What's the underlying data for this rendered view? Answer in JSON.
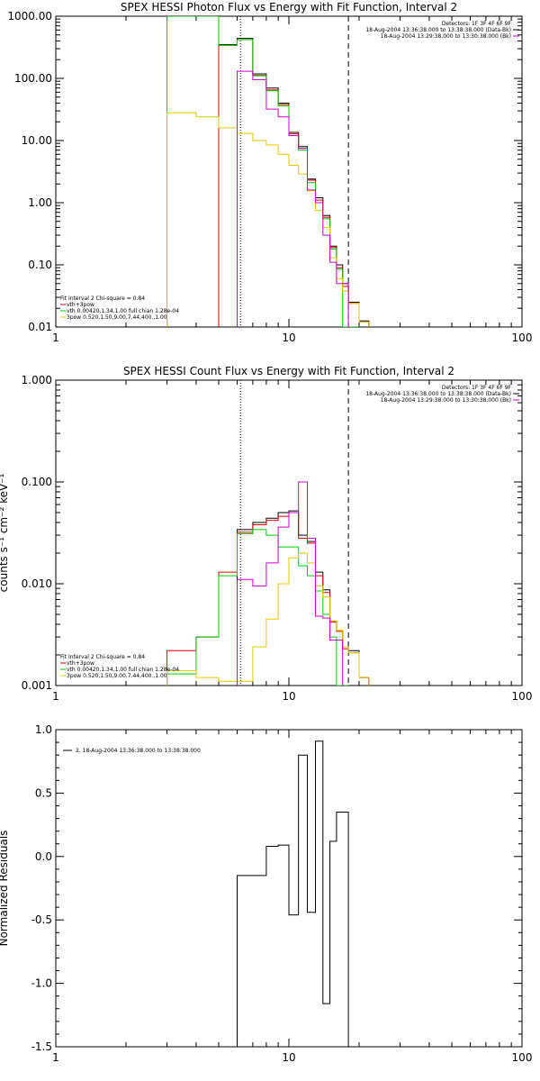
{
  "chart_data": [
    {
      "type": "line",
      "title": "SPEX HESSI Photon Flux vs Energy with Fit Function, Interval 2",
      "xlabel": "",
      "ylabel": "",
      "xscale": "log",
      "yscale": "log",
      "xlim": [
        1,
        100
      ],
      "ylim": [
        0.01,
        1000
      ],
      "xticks": [
        "1",
        "10",
        "100"
      ],
      "yticks": [
        "0.01",
        "0.10",
        "1.00",
        "10.00",
        "100.00",
        "1000.00"
      ],
      "vlines": [
        {
          "x": 6.2,
          "style": "dotted",
          "color": "#000000"
        },
        {
          "x": 18.0,
          "style": "dashed",
          "color": "#000000"
        }
      ],
      "header_lines": [
        "Detectors: 1F 3F 4F 6F 9F",
        "18-Aug-2004 13:36:38.000 to 13:38:38.000 (Data-Bk)",
        "18-Aug-2004 13:29:38.000 to 13:30:38.000 (Bk)"
      ],
      "legend_location": "bottom-left",
      "legend": [
        {
          "text": "Fit Interval 2   Chi-square = 0.84",
          "color": ""
        },
        {
          "text": "vth+3pow",
          "color": "#dd0000"
        },
        {
          "text": "vth 0.00420,1.34,1.00  full chian 1.28e-04",
          "color": "#00cc00"
        },
        {
          "text": "3pow 0.520,1.50,9.00,7.44,400.,1.00",
          "color": "#e6c800"
        }
      ],
      "edges": [
        3.0,
        4.0,
        5.0,
        6.0,
        7.0,
        8.0,
        9.0,
        10.0,
        11.0,
        12.0,
        13.0,
        14.0,
        15.0,
        16.0,
        17.0,
        18.0,
        20.0,
        22.0
      ],
      "series": [
        {
          "color": "#000000",
          "values": [
            null,
            null,
            350,
            440,
            118,
            70,
            40,
            13.5,
            8.0,
            2.4,
            1.2,
            0.62,
            0.2,
            0.1,
            0.05,
            0.025,
            0.0125
          ]
        },
        {
          "color": "#dd0000",
          "values": [
            null,
            null,
            340,
            420,
            112,
            65,
            38,
            12.8,
            7.5,
            2.3,
            1.1,
            0.58,
            0.19,
            0.09,
            0.045,
            0.024,
            0.012
          ]
        },
        {
          "color": "#00cc00",
          "values": [
            1000,
            1000,
            340,
            420,
            110,
            63,
            36,
            12.0,
            7.0,
            2.1,
            1.0,
            0.55,
            0.18,
            0.085,
            0.01,
            0.01,
            null
          ]
        },
        {
          "color": "#e6c800",
          "values": [
            28,
            24,
            16,
            13,
            10,
            8.5,
            6.0,
            4.0,
            2.9,
            1.55,
            0.75,
            0.4,
            0.13,
            0.06,
            0.038,
            0.024,
            0.012
          ]
        },
        {
          "color": "#cc00cc",
          "values": [
            null,
            null,
            null,
            130,
            95,
            32,
            24,
            12.0,
            7.5,
            1.6,
            1.0,
            0.3,
            0.11,
            0.05,
            0.05,
            null,
            null
          ]
        }
      ]
    },
    {
      "type": "line",
      "title": "SPEX HESSI Count Flux vs Energy with Fit Function, Interval 2",
      "xlabel": "",
      "ylabel": "counts s⁻¹ cm⁻² keV⁻¹",
      "xscale": "log",
      "yscale": "log",
      "xlim": [
        1,
        100
      ],
      "ylim": [
        0.001,
        1.0
      ],
      "xticks": [
        "1",
        "10",
        "100"
      ],
      "yticks": [
        "0.001",
        "0.010",
        "0.100",
        "1.000"
      ],
      "vlines": [
        {
          "x": 6.2,
          "style": "dotted",
          "color": "#000000"
        },
        {
          "x": 18.0,
          "style": "dashed",
          "color": "#000000"
        }
      ],
      "header_lines": [
        "Detectors: 1F 3F 4F 6F 9F",
        "18-Aug-2004 13:36:38.000 to 13:38:38.000 (Data-Bk)",
        "18-Aug-2004 13:29:38.000 to 13:30:38.000 (Bk)"
      ],
      "legend_location": "bottom-left",
      "legend": [
        {
          "text": "Fit Interval 2   Chi-square = 0.84",
          "color": ""
        },
        {
          "text": "vth+3pow",
          "color": "#dd0000"
        },
        {
          "text": "vth 0.00420,1.34,1.00  full chian 1.28e-04",
          "color": "#00cc00"
        },
        {
          "text": "3pow 0.520,1.50,9.00,7.44,400.,1.00",
          "color": "#e6c800"
        }
      ],
      "edges": [
        3.0,
        4.0,
        5.0,
        6.0,
        7.0,
        8.0,
        9.0,
        10.0,
        11.0,
        12.0,
        13.0,
        14.0,
        15.0,
        16.0,
        17.0,
        18.0,
        20.0,
        22.0
      ],
      "series": [
        {
          "color": "#000000",
          "values": [
            null,
            null,
            null,
            0.034,
            0.04,
            0.044,
            0.05,
            0.052,
            0.03,
            0.026,
            0.013,
            0.0087,
            0.0043,
            0.0035,
            0.0024,
            0.0022,
            0.0012
          ]
        },
        {
          "color": "#dd0000",
          "values": [
            0.0022,
            0.003,
            0.013,
            0.032,
            0.038,
            0.042,
            0.046,
            0.05,
            0.028,
            0.025,
            0.012,
            0.0082,
            0.0042,
            0.0034,
            0.0023,
            0.0021,
            0.0012
          ]
        },
        {
          "color": "#00cc00",
          "values": [
            0.0013,
            0.003,
            0.012,
            0.031,
            0.034,
            0.03,
            0.023,
            0.023,
            0.015,
            0.012,
            0.0085,
            0.005,
            0.003,
            0.001,
            0.001,
            null,
            null
          ]
        },
        {
          "color": "#e6c800",
          "values": [
            0.0014,
            0.0012,
            0.0011,
            0.0011,
            0.0024,
            0.0045,
            0.01,
            0.018,
            0.02,
            0.016,
            0.0095,
            0.0074,
            0.0043,
            0.0035,
            0.0024,
            0.0021,
            0.0012
          ]
        },
        {
          "color": "#cc00cc",
          "values": [
            null,
            null,
            null,
            0.011,
            0.0095,
            0.016,
            0.036,
            0.05,
            0.1,
            0.028,
            0.0048,
            0.0046,
            0.0028,
            0.0028,
            null,
            null,
            null
          ]
        }
      ]
    },
    {
      "type": "line",
      "title": "",
      "xlabel": "",
      "ylabel": "Normalized Residuals",
      "xscale": "log",
      "yscale": "linear",
      "xlim": [
        1,
        100
      ],
      "ylim": [
        -1.5,
        1.0
      ],
      "xticks": [
        "1",
        "10",
        "100"
      ],
      "yticks": [
        "-1.5",
        "-1.0",
        "-0.5",
        "0.0",
        "0.5",
        "1.0"
      ],
      "legend_location": "top-left",
      "legend": [
        {
          "text": "2. 18-Aug-2004 13:36:38.000 to 13:38:38.000",
          "color": "#000000"
        }
      ],
      "edges": [
        6.0,
        7.0,
        8.0,
        9.0,
        10.0,
        11.0,
        12.0,
        13.0,
        14.0,
        15.0,
        16.0,
        17.0,
        18.0
      ],
      "series": [
        {
          "color": "#000000",
          "values": [
            -0.15,
            -0.15,
            0.08,
            0.09,
            -0.46,
            0.8,
            -0.44,
            0.91,
            -1.16,
            0.12,
            0.35,
            0.35
          ]
        }
      ]
    }
  ]
}
